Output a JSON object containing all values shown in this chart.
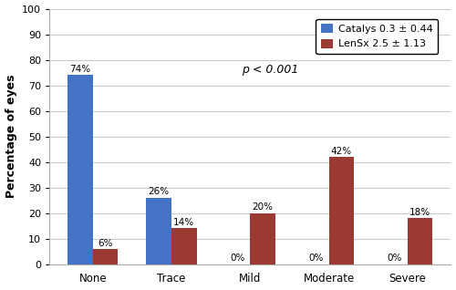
{
  "categories": [
    "None",
    "Trace",
    "Mild",
    "Moderate",
    "Severe"
  ],
  "catalys_values": [
    74,
    26,
    0,
    0,
    0
  ],
  "lensx_values": [
    6,
    14,
    20,
    42,
    18
  ],
  "catalys_color": "#4472C4",
  "lensx_color": "#9B3A32",
  "ylabel": "Percentage of eyes",
  "ylim": [
    0,
    100
  ],
  "yticks": [
    0,
    10,
    20,
    30,
    40,
    50,
    60,
    70,
    80,
    90,
    100
  ],
  "legend_labels": [
    "Catalys 0.3 ± 0.44",
    "LenSx 2.5 ± 1.13"
  ],
  "annotation": "p < 0.001",
  "bar_width": 0.32,
  "figsize": [
    5.0,
    3.18
  ],
  "dpi": 100
}
